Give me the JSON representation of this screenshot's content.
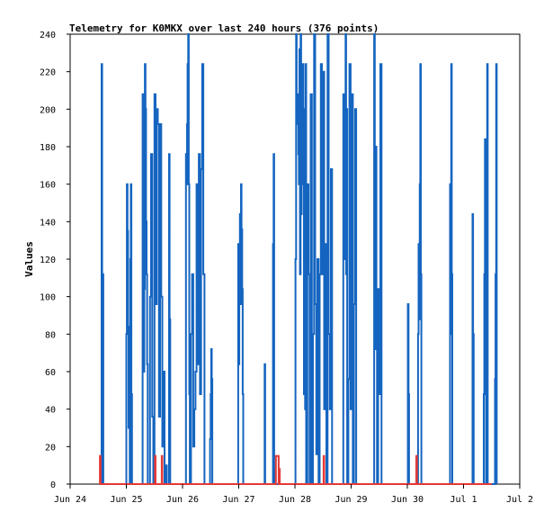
{
  "chart_data": {
    "type": "line",
    "title": "Telemetry for K0MKX over last 240 hours (376 points)",
    "xlabel": "",
    "ylabel": "Values",
    "x_ticks": [
      "Jun 24",
      "Jun 25",
      "Jun 26",
      "Jun 27",
      "Jun 28",
      "Jun 29",
      "Jun 30",
      "Jul 1",
      "Jul 2"
    ],
    "y_ticks": [
      "0",
      "20",
      "40",
      "60",
      "80",
      "100",
      "120",
      "140",
      "160",
      "180",
      "200",
      "220",
      "240"
    ],
    "xlim": [
      0,
      8
    ],
    "ylim": [
      0,
      240
    ],
    "grid": false,
    "legend": "none",
    "series": [
      {
        "color": "#1565c0",
        "points": [
          [
            0.55,
            0
          ],
          [
            0.56,
            224
          ],
          [
            0.57,
            0
          ],
          [
            0.58,
            112
          ],
          [
            0.59,
            0
          ],
          [
            1.0,
            0
          ],
          [
            1.0,
            80
          ],
          [
            1.01,
            160
          ],
          [
            1.02,
            135
          ],
          [
            1.03,
            84
          ],
          [
            1.04,
            30
          ],
          [
            1.05,
            48
          ],
          [
            1.06,
            0
          ],
          [
            1.07,
            120
          ],
          [
            1.08,
            160
          ],
          [
            1.09,
            48
          ],
          [
            1.1,
            0
          ],
          [
            1.28,
            0
          ],
          [
            1.29,
            208
          ],
          [
            1.3,
            104
          ],
          [
            1.31,
            60
          ],
          [
            1.32,
            104
          ],
          [
            1.33,
            224
          ],
          [
            1.34,
            200
          ],
          [
            1.35,
            140
          ],
          [
            1.36,
            112
          ],
          [
            1.37,
            64
          ],
          [
            1.38,
            0
          ],
          [
            1.42,
            100
          ],
          [
            1.44,
            176
          ],
          [
            1.46,
            36
          ],
          [
            1.48,
            0
          ],
          [
            1.5,
            208
          ],
          [
            1.52,
            96
          ],
          [
            1.54,
            200
          ],
          [
            1.56,
            192
          ],
          [
            1.58,
            36
          ],
          [
            1.6,
            192
          ],
          [
            1.62,
            100
          ],
          [
            1.64,
            20
          ],
          [
            1.66,
            60
          ],
          [
            1.68,
            0
          ],
          [
            1.7,
            10
          ],
          [
            1.72,
            0
          ],
          [
            1.75,
            0
          ],
          [
            1.76,
            176
          ],
          [
            1.77,
            88
          ],
          [
            1.78,
            0
          ],
          [
            2.05,
            0
          ],
          [
            2.06,
            176
          ],
          [
            2.07,
            160
          ],
          [
            2.08,
            192
          ],
          [
            2.09,
            224
          ],
          [
            2.1,
            240
          ],
          [
            2.11,
            160
          ],
          [
            2.12,
            48
          ],
          [
            2.13,
            0
          ],
          [
            2.15,
            80
          ],
          [
            2.17,
            112
          ],
          [
            2.19,
            20
          ],
          [
            2.21,
            40
          ],
          [
            2.23,
            60
          ],
          [
            2.25,
            160
          ],
          [
            2.27,
            64
          ],
          [
            2.29,
            176
          ],
          [
            2.31,
            48
          ],
          [
            2.33,
            168
          ],
          [
            2.35,
            224
          ],
          [
            2.37,
            112
          ],
          [
            2.39,
            0
          ],
          [
            2.48,
            0
          ],
          [
            2.49,
            24
          ],
          [
            2.5,
            48
          ],
          [
            2.51,
            72
          ],
          [
            2.52,
            56
          ],
          [
            2.53,
            0
          ],
          [
            2.98,
            0
          ],
          [
            2.99,
            128
          ],
          [
            3.0,
            64
          ],
          [
            3.01,
            112
          ],
          [
            3.02,
            144
          ],
          [
            3.03,
            96
          ],
          [
            3.04,
            160
          ],
          [
            3.05,
            136
          ],
          [
            3.06,
            104
          ],
          [
            3.07,
            48
          ],
          [
            3.08,
            0
          ],
          [
            3.45,
            0
          ],
          [
            3.46,
            64
          ],
          [
            3.47,
            0
          ],
          [
            3.6,
            0
          ],
          [
            3.61,
            128
          ],
          [
            3.62,
            176
          ],
          [
            3.63,
            8
          ],
          [
            3.64,
            0
          ],
          [
            4.0,
            0
          ],
          [
            4.01,
            120
          ],
          [
            4.02,
            240
          ],
          [
            4.03,
            192
          ],
          [
            4.04,
            208
          ],
          [
            4.05,
            200
          ],
          [
            4.06,
            176
          ],
          [
            4.07,
            160
          ],
          [
            4.08,
            232
          ],
          [
            4.09,
            112
          ],
          [
            4.1,
            240
          ],
          [
            4.11,
            144
          ],
          [
            4.12,
            224
          ],
          [
            4.13,
            160
          ],
          [
            4.14,
            224
          ],
          [
            4.15,
            180
          ],
          [
            4.16,
            48
          ],
          [
            4.17,
            200
          ],
          [
            4.18,
            40
          ],
          [
            4.19,
            224
          ],
          [
            4.2,
            0
          ],
          [
            4.22,
            160
          ],
          [
            4.24,
            112
          ],
          [
            4.26,
            0
          ],
          [
            4.28,
            208
          ],
          [
            4.3,
            0
          ],
          [
            4.32,
            80
          ],
          [
            4.34,
            240
          ],
          [
            4.36,
            96
          ],
          [
            4.38,
            16
          ],
          [
            4.4,
            120
          ],
          [
            4.42,
            0
          ],
          [
            4.44,
            112
          ],
          [
            4.46,
            224
          ],
          [
            4.48,
            112
          ],
          [
            4.5,
            220
          ],
          [
            4.52,
            40
          ],
          [
            4.54,
            128
          ],
          [
            4.56,
            0
          ],
          [
            4.58,
            240
          ],
          [
            4.6,
            80
          ],
          [
            4.62,
            40
          ],
          [
            4.64,
            168
          ],
          [
            4.66,
            0
          ],
          [
            4.85,
            0
          ],
          [
            4.86,
            208
          ],
          [
            4.87,
            120
          ],
          [
            4.88,
            200
          ],
          [
            4.89,
            176
          ],
          [
            4.9,
            240
          ],
          [
            4.91,
            112
          ],
          [
            4.92,
            200
          ],
          [
            4.93,
            0
          ],
          [
            4.95,
            56
          ],
          [
            4.97,
            224
          ],
          [
            4.99,
            40
          ],
          [
            5.01,
            208
          ],
          [
            5.03,
            0
          ],
          [
            5.05,
            96
          ],
          [
            5.07,
            200
          ],
          [
            5.09,
            0
          ],
          [
            5.4,
            0
          ],
          [
            5.41,
            240
          ],
          [
            5.42,
            100
          ],
          [
            5.43,
            72
          ],
          [
            5.44,
            180
          ],
          [
            5.45,
            88
          ],
          [
            5.46,
            0
          ],
          [
            5.48,
            104
          ],
          [
            5.5,
            48
          ],
          [
            5.52,
            224
          ],
          [
            5.54,
            0
          ],
          [
            6.0,
            0
          ],
          [
            6.01,
            96
          ],
          [
            6.02,
            48
          ],
          [
            6.03,
            0
          ],
          [
            6.18,
            0
          ],
          [
            6.19,
            80
          ],
          [
            6.2,
            128
          ],
          [
            6.21,
            88
          ],
          [
            6.22,
            160
          ],
          [
            6.23,
            224
          ],
          [
            6.24,
            112
          ],
          [
            6.25,
            0
          ],
          [
            6.75,
            0
          ],
          [
            6.76,
            160
          ],
          [
            6.77,
            80
          ],
          [
            6.78,
            224
          ],
          [
            6.79,
            112
          ],
          [
            6.8,
            0
          ],
          [
            7.15,
            0
          ],
          [
            7.16,
            144
          ],
          [
            7.17,
            80
          ],
          [
            7.18,
            0
          ],
          [
            7.35,
            0
          ],
          [
            7.36,
            48
          ],
          [
            7.37,
            112
          ],
          [
            7.38,
            184
          ],
          [
            7.39,
            88
          ],
          [
            7.4,
            0
          ],
          [
            7.42,
            224
          ],
          [
            7.43,
            0
          ],
          [
            7.55,
            0
          ],
          [
            7.56,
            56
          ],
          [
            7.57,
            112
          ],
          [
            7.58,
            224
          ],
          [
            7.59,
            0
          ]
        ]
      },
      {
        "color": "#e53935",
        "points": [
          [
            0.52,
            0
          ],
          [
            0.53,
            15
          ],
          [
            0.54,
            0
          ],
          [
            1.5,
            0
          ],
          [
            1.51,
            15
          ],
          [
            1.52,
            0
          ],
          [
            1.62,
            0
          ],
          [
            1.63,
            15
          ],
          [
            1.64,
            0
          ],
          [
            3.65,
            0
          ],
          [
            3.66,
            15
          ],
          [
            3.7,
            15
          ],
          [
            3.71,
            0
          ],
          [
            3.72,
            8
          ],
          [
            3.73,
            0
          ],
          [
            4.5,
            0
          ],
          [
            4.51,
            15
          ],
          [
            4.52,
            0
          ],
          [
            6.15,
            0
          ],
          [
            6.16,
            15
          ],
          [
            6.17,
            0
          ],
          [
            7.0,
            0
          ],
          [
            7.5,
            0
          ]
        ]
      }
    ]
  }
}
